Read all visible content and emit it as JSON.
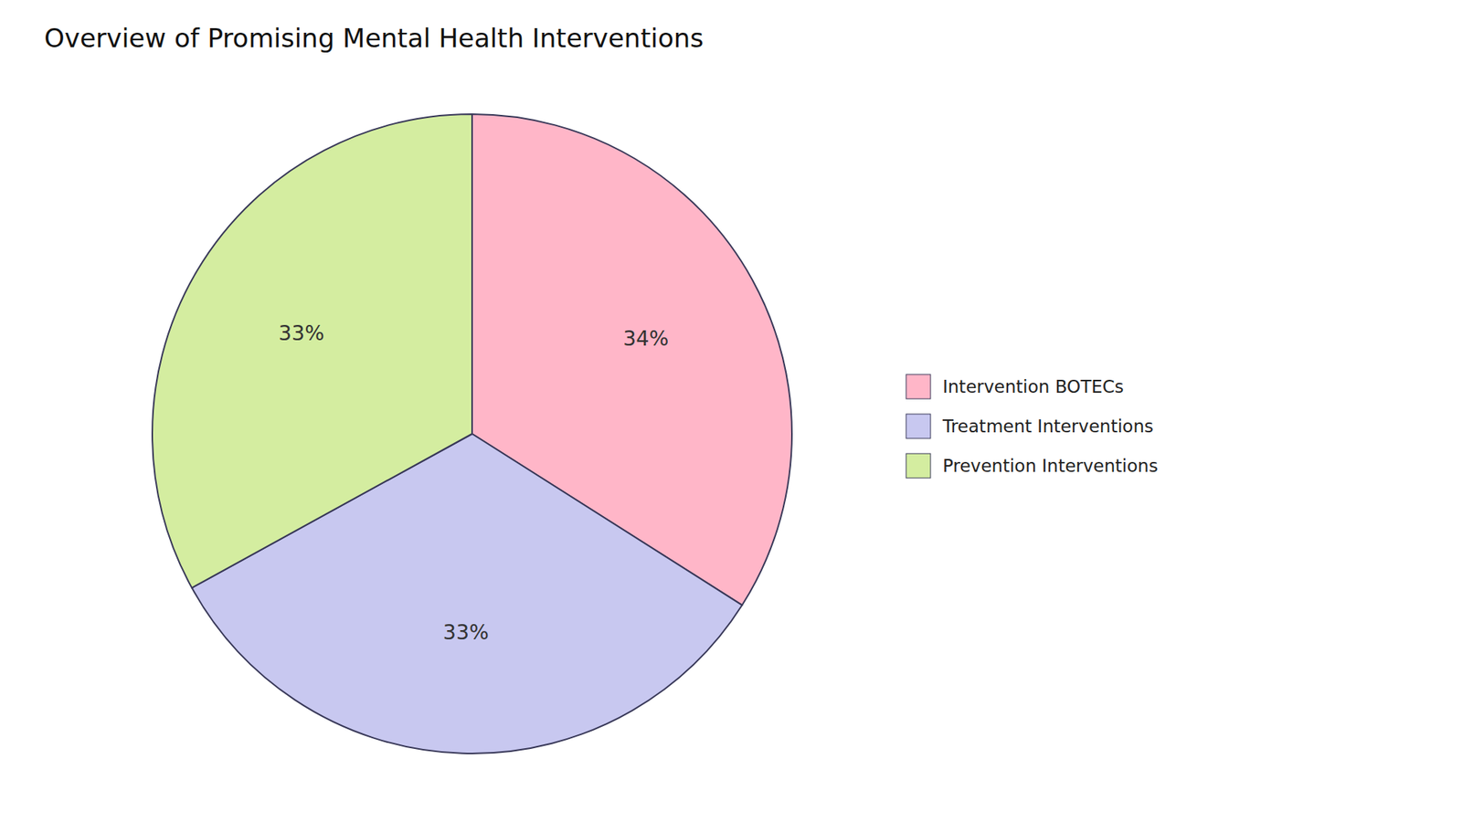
{
  "chart_data": {
    "type": "pie",
    "title": "Overview of Promising Mental Health Interventions",
    "categories": [
      "Intervention BOTECs",
      "Treatment Interventions",
      "Prevention Interventions"
    ],
    "values": [
      34,
      33,
      33
    ],
    "value_labels": [
      "34%",
      "33%",
      "33%"
    ],
    "colors": [
      "#FFB6C8",
      "#C8C8F0",
      "#D4EDA0"
    ],
    "data_labels": true,
    "legend": "right"
  }
}
